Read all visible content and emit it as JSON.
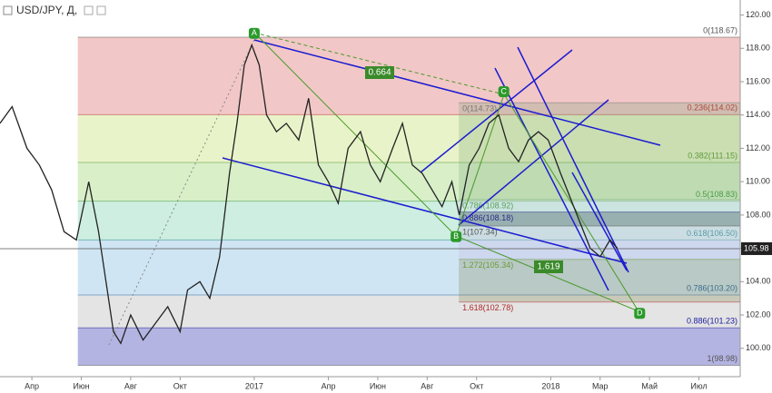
{
  "chart_data": {
    "type": "line",
    "title": "USD/JPY, Д,",
    "xlim": [
      1.71,
      31.67
    ],
    "ylim": [
      98.3,
      120.9
    ],
    "xticks": [
      {
        "value": 3,
        "label": "Апр"
      },
      {
        "value": 5,
        "label": "Июн"
      },
      {
        "value": 7,
        "label": "Авг"
      },
      {
        "value": 9,
        "label": "Окт"
      },
      {
        "value": 12,
        "label": "2017"
      },
      {
        "value": 15,
        "label": "Апр"
      },
      {
        "value": 17,
        "label": "Июн"
      },
      {
        "value": 19,
        "label": "Авг"
      },
      {
        "value": 21,
        "label": "Окт"
      },
      {
        "value": 24,
        "label": "2018"
      },
      {
        "value": 26,
        "label": "Мар"
      },
      {
        "value": 28,
        "label": "Май"
      },
      {
        "value": 30,
        "label": "Июл"
      }
    ],
    "yticks": [
      {
        "value": 100,
        "label": "100.00"
      },
      {
        "value": 102,
        "label": "102.00"
      },
      {
        "value": 104,
        "label": "104.00"
      },
      {
        "value": 106,
        "label": "106.00"
      },
      {
        "value": 108,
        "label": "108.00"
      },
      {
        "value": 110,
        "label": "110.00"
      },
      {
        "value": 112,
        "label": "112.00"
      },
      {
        "value": 114,
        "label": "114.00"
      },
      {
        "value": 116,
        "label": "116.00"
      },
      {
        "value": 118,
        "label": "118.00"
      },
      {
        "value": 120,
        "label": "120.00"
      }
    ],
    "series": [
      {
        "color": "#222222",
        "x": [
          1.71,
          2.2,
          2.8,
          3.3,
          3.8,
          4.3,
          4.8,
          5.3,
          5.7,
          6.0,
          6.3,
          6.6,
          7.0,
          7.5,
          8.0,
          8.5,
          9.0,
          9.3,
          9.8,
          10.2,
          10.6,
          11.0,
          11.3,
          11.6,
          11.9,
          12.2,
          12.5,
          12.9,
          13.3,
          13.8,
          14.2,
          14.6,
          15.0,
          15.4,
          15.8,
          16.3,
          16.7,
          17.1,
          17.6,
          18.0,
          18.4,
          18.8,
          19.2,
          19.6,
          20.0,
          20.3,
          20.7,
          21.1,
          21.5,
          21.9,
          22.3,
          22.7,
          23.1,
          23.5,
          23.9,
          24.4,
          24.8,
          25.2,
          25.6,
          26.0,
          26.4,
          26.7
        ],
        "values": [
          113.5,
          114.5,
          112,
          111,
          109.5,
          107,
          106.5,
          110,
          107,
          104,
          101,
          100.3,
          102,
          100.5,
          101.5,
          102.5,
          101,
          103.5,
          104,
          103,
          105.5,
          110.5,
          113.5,
          117,
          118.2,
          117,
          114,
          113,
          113.5,
          112.5,
          115,
          111,
          110,
          108.7,
          112,
          113,
          111,
          110,
          112,
          113.5,
          111,
          110.5,
          109.5,
          108.5,
          110,
          108,
          111,
          112,
          113.5,
          114,
          112,
          111.2,
          112.5,
          113,
          112.5,
          110.5,
          109,
          107.5,
          106,
          105.5,
          106.5,
          106
        ]
      }
    ],
    "last_price": {
      "value": 105.98,
      "label": "105.98"
    },
    "fib_main": {
      "x_start": 4.86,
      "levels": [
        {
          "value": 118.67,
          "label": "0(118.67)",
          "color": "#555555"
        },
        {
          "value": 114.02,
          "label": "0.236(114.02)",
          "color": "#c0282d"
        },
        {
          "value": 111.15,
          "label": "0.382(111.15)",
          "color": "#5a9a28"
        },
        {
          "value": 108.83,
          "label": "0.5(108.83)",
          "color": "#3a9a3a"
        },
        {
          "value": 106.5,
          "label": "0.618(106.50)",
          "color": "#1a8a8a"
        },
        {
          "value": 103.2,
          "label": "0.786(103.20)",
          "color": "#2a6aa8"
        },
        {
          "value": 101.23,
          "label": "0.886(101.23)",
          "color": "#1a1a9a"
        },
        {
          "value": 98.98,
          "label": "1(98.98)",
          "color": "#555555"
        }
      ],
      "band_colors": [
        "#f2c7c7",
        "#e9f3c9",
        "#d8efc8",
        "#cdeee0",
        "#cfe5f3",
        "#e4e4e4",
        "#b4b4e2"
      ]
    },
    "fib_ext": {
      "x_start": 20.28,
      "levels": [
        {
          "value": 114.73,
          "label": "0(114.73)",
          "color": "#777777"
        },
        {
          "value": 108.92,
          "label": "0.786(108.92)",
          "color": "#5aa05a"
        },
        {
          "value": 108.18,
          "label": "0.886(108.18)",
          "color": "#2a2a8a"
        },
        {
          "value": 107.34,
          "label": "1(107.34)",
          "color": "#555555"
        },
        {
          "value": 105.34,
          "label": "1.272(105.34)",
          "color": "#6a9a3a"
        },
        {
          "value": 102.78,
          "label": "1.618(102.78)",
          "color": "#b02a2a"
        }
      ],
      "band_colors": [
        "rgba(110,160,110,0.25)",
        "rgba(200,210,220,0.35)",
        "rgba(90,100,120,0.45)",
        "rgba(200,190,230,0.35)",
        "rgba(120,120,60,0.25)"
      ]
    },
    "points": [
      {
        "label": "A",
        "x": 12.0,
        "y": 118.9
      },
      {
        "label": "B",
        "x": 20.17,
        "y": 106.7
      },
      {
        "label": "C",
        "x": 22.1,
        "y": 115.4
      },
      {
        "label": "D",
        "x": 27.6,
        "y": 102.1
      }
    ],
    "ratios": [
      "0.664",
      "1.619"
    ]
  }
}
